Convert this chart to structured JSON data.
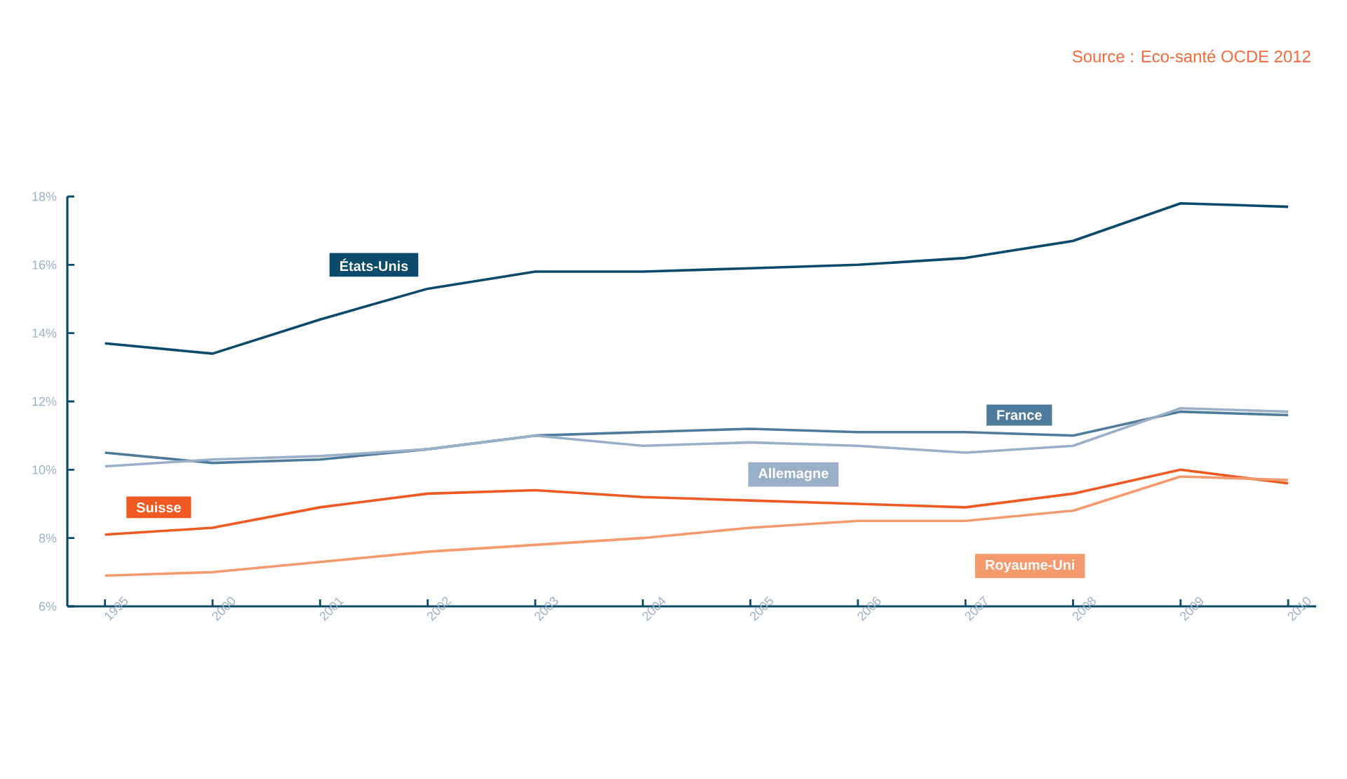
{
  "chart_data": {
    "type": "line",
    "annotations": [
      "Source : Eco-santé OCDE 2012"
    ],
    "categories": [
      "1995",
      "2000",
      "2001",
      "2002",
      "2003",
      "2004",
      "2005",
      "2006",
      "2007",
      "2008",
      "2009",
      "2010"
    ],
    "ylim": [
      6,
      18
    ],
    "yticks": [
      {
        "value": 6,
        "label": "6%"
      },
      {
        "value": 8,
        "label": "8%"
      },
      {
        "value": 10,
        "label": "10%"
      },
      {
        "value": 12,
        "label": "12%"
      },
      {
        "value": 14,
        "label": "14%"
      },
      {
        "value": 16,
        "label": "16%"
      },
      {
        "value": 18,
        "label": "18%"
      }
    ],
    "grid": false,
    "series": [
      {
        "name": "États-Unis",
        "color": "#0b4a6b",
        "values": [
          13.7,
          13.4,
          14.4,
          15.3,
          15.8,
          15.8,
          15.9,
          16.0,
          16.2,
          16.7,
          17.8,
          17.7
        ]
      },
      {
        "name": "France",
        "color": "#4e7b9b",
        "values": [
          10.5,
          10.2,
          10.3,
          10.6,
          11.0,
          11.1,
          11.2,
          11.1,
          11.1,
          11.0,
          11.7,
          11.6
        ]
      },
      {
        "name": "Allemagne",
        "color": "#9ab0c8",
        "values": [
          10.1,
          10.3,
          10.4,
          10.6,
          11.0,
          10.7,
          10.8,
          10.7,
          10.5,
          10.7,
          11.8,
          11.7
        ]
      },
      {
        "name": "Suisse",
        "color": "#f05a22",
        "values": [
          8.1,
          8.3,
          8.9,
          9.3,
          9.4,
          9.2,
          9.1,
          9.0,
          8.9,
          9.3,
          10.0,
          9.6
        ]
      },
      {
        "name": "Royaume-Uni",
        "color": "#f59a6e",
        "values": [
          6.9,
          7.0,
          7.3,
          7.6,
          7.8,
          8.0,
          8.3,
          8.5,
          8.5,
          8.8,
          9.8,
          9.7
        ]
      }
    ]
  }
}
